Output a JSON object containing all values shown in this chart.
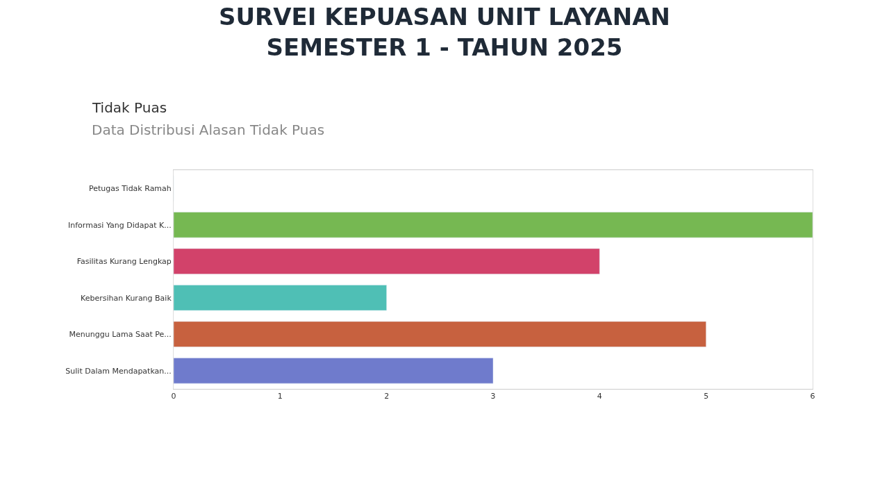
{
  "chart_data": {
    "type": "bar",
    "orientation": "horizontal",
    "title": "SURVEI KEPUASAN UNIT LAYANAN\nSEMESTER 1 - TAHUN 2025",
    "subtitle": "Tidak Puas",
    "annotations": [
      "Data Distribusi Alasan Tidak Puas"
    ],
    "categories": [
      "Petugas Tidak Ramah",
      "Informasi Yang Didapat K...",
      "Fasilitas Kurang Lengkap",
      "Kebersihan Kurang Baik",
      "Menunggu Lama Saat Pe...",
      "Sulit Dalam Mendapatkan..."
    ],
    "values": [
      0,
      6,
      4,
      2,
      5,
      3
    ],
    "colors": [
      null,
      "#76b852",
      "#d2426a",
      "#4fbfb5",
      "#c7613f",
      "#6f7bcc"
    ],
    "xlim": [
      0,
      6
    ],
    "xticks": [
      0,
      1,
      2,
      3,
      4,
      5,
      6
    ]
  }
}
